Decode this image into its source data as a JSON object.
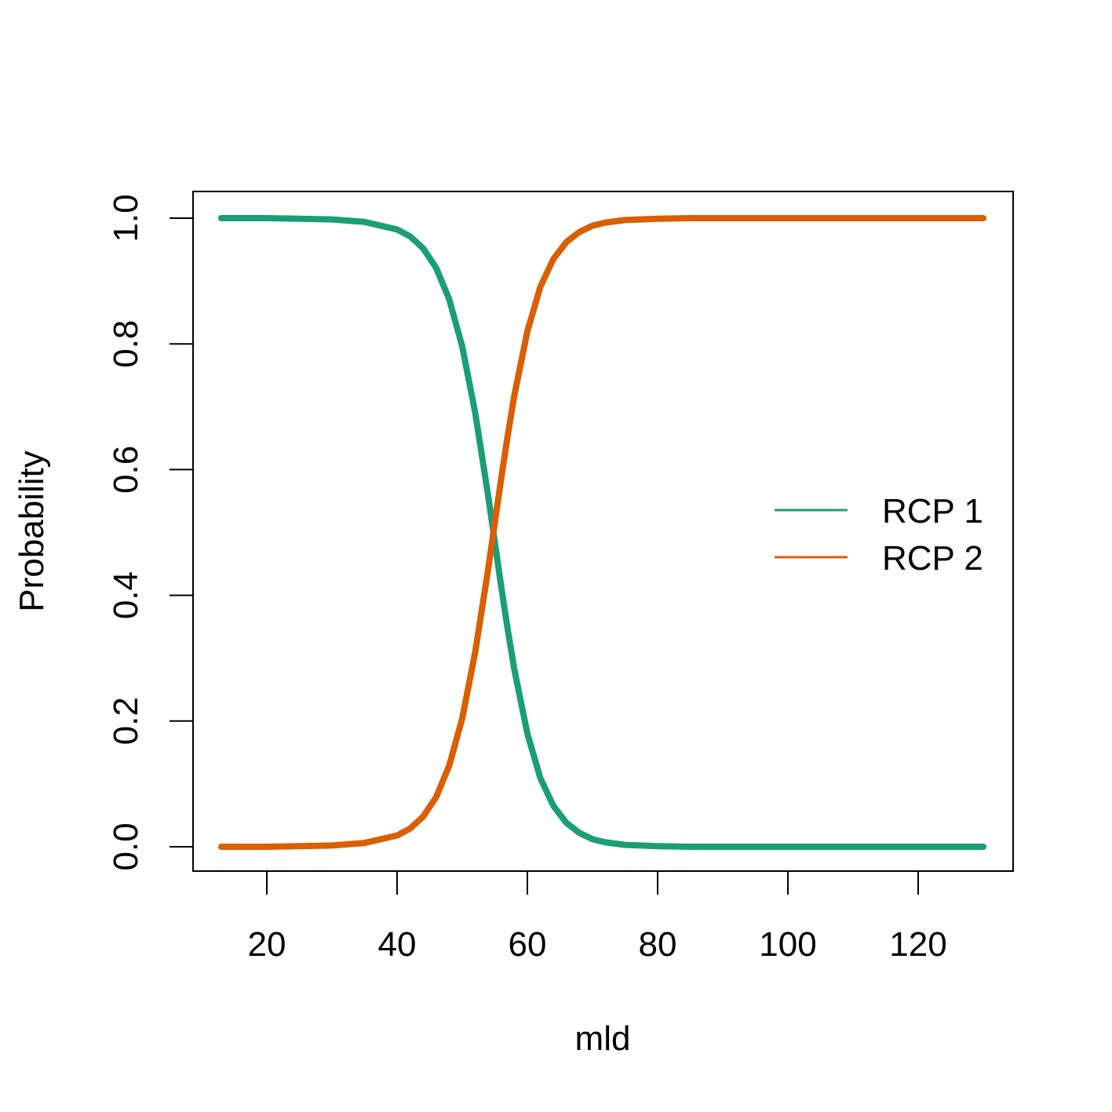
{
  "chart_data": {
    "type": "line",
    "title": "",
    "xlabel": "mld",
    "ylabel": "Probability",
    "xlim": [
      13,
      130
    ],
    "ylim": [
      0,
      1
    ],
    "xticks": [
      20,
      40,
      60,
      80,
      100,
      120
    ],
    "yticks": [
      0.0,
      0.2,
      0.4,
      0.6,
      0.8,
      1.0
    ],
    "xtick_labels": [
      "20",
      "40",
      "60",
      "80",
      "100",
      "120"
    ],
    "ytick_labels": [
      "0.0",
      "0.2",
      "0.4",
      "0.6",
      "0.8",
      "1.0"
    ],
    "grid": false,
    "legend_position": "right",
    "x": [
      13,
      20,
      25,
      30,
      35,
      40,
      42,
      44,
      46,
      48,
      50,
      52,
      54,
      56,
      57,
      58,
      60,
      62,
      64,
      66,
      68,
      70,
      72,
      75,
      80,
      85,
      90,
      100,
      110,
      120,
      130
    ],
    "series": [
      {
        "name": "RCP 1",
        "color": "#1B9E77",
        "values": [
          1.0,
          1.0,
          0.999,
          0.998,
          0.994,
          0.982,
          0.971,
          0.952,
          0.921,
          0.871,
          0.796,
          0.69,
          0.557,
          0.413,
          0.345,
          0.282,
          0.18,
          0.109,
          0.065,
          0.038,
          0.022,
          0.012,
          0.007,
          0.003,
          0.001,
          0.0,
          0.0,
          0.0,
          0.0,
          0.0,
          0.0
        ]
      },
      {
        "name": "RCP 2",
        "color": "#D95F02",
        "values": [
          0.0,
          0.0,
          0.001,
          0.002,
          0.006,
          0.018,
          0.029,
          0.048,
          0.079,
          0.129,
          0.204,
          0.31,
          0.443,
          0.587,
          0.655,
          0.718,
          0.82,
          0.891,
          0.935,
          0.962,
          0.978,
          0.988,
          0.993,
          0.997,
          0.999,
          1.0,
          1.0,
          1.0,
          1.0,
          1.0,
          1.0
        ]
      }
    ]
  }
}
